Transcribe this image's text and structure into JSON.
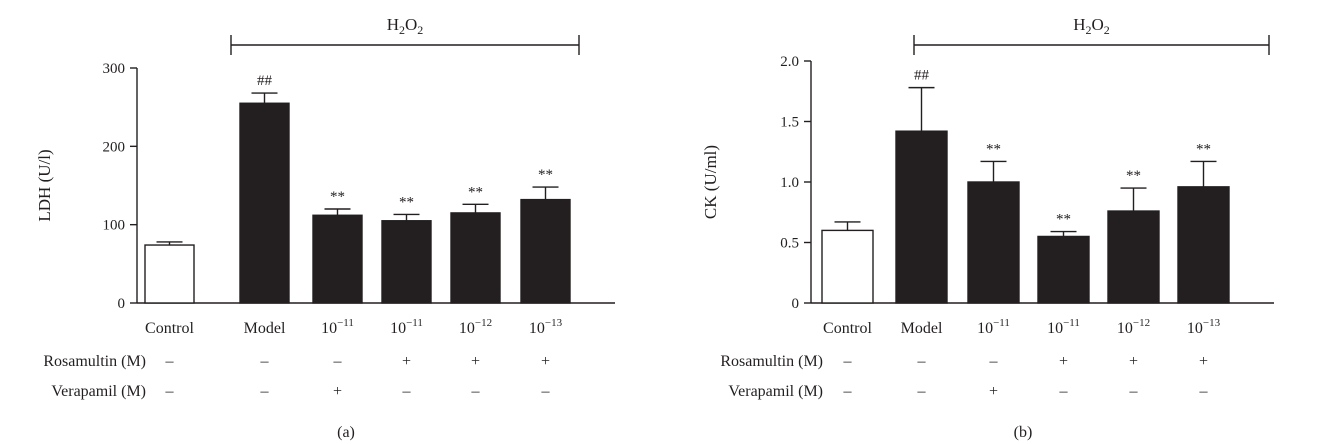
{
  "chart_data": [
    {
      "type": "bar",
      "panel_label": "(a)",
      "ylabel": "LDH (U/l)",
      "ylim": [
        0,
        300
      ],
      "yticks": [
        "0",
        "100",
        "200",
        "300"
      ],
      "bracket_label": "H2O2",
      "categories": [
        {
          "base": "Control",
          "exp": ""
        },
        {
          "base": "Model",
          "exp": ""
        },
        {
          "base": "10",
          "exp": "−11"
        },
        {
          "base": "10",
          "exp": "−11"
        },
        {
          "base": "10",
          "exp": "−12"
        },
        {
          "base": "10",
          "exp": "−13"
        }
      ],
      "values": [
        74,
        255,
        112,
        105,
        115,
        132
      ],
      "errors": [
        4,
        13,
        8,
        8,
        11,
        16
      ],
      "bar_colors": [
        "#ffffff",
        "#231f20",
        "#231f20",
        "#231f20",
        "#231f20",
        "#231f20"
      ],
      "significance": [
        "",
        "##",
        "**",
        "**",
        "**",
        "**"
      ],
      "rows": [
        {
          "label": "Rosamultin (M)",
          "values": [
            "–",
            "–",
            "–",
            "+",
            "+",
            "+"
          ]
        },
        {
          "label": "Verapamil (M)",
          "values": [
            "–",
            "–",
            "+",
            "–",
            "–",
            "–"
          ]
        }
      ]
    },
    {
      "type": "bar",
      "panel_label": "(b)",
      "ylabel": "CK (U/ml)",
      "ylim": [
        0,
        2.0
      ],
      "yticks": [
        "0",
        "0.5",
        "1.0",
        "1.5",
        "2.0"
      ],
      "bracket_label": "H2O2",
      "categories": [
        {
          "base": "Control",
          "exp": ""
        },
        {
          "base": "Model",
          "exp": ""
        },
        {
          "base": "10",
          "exp": "−11"
        },
        {
          "base": "10",
          "exp": "−11"
        },
        {
          "base": "10",
          "exp": "−12"
        },
        {
          "base": "10",
          "exp": "−13"
        }
      ],
      "values": [
        0.6,
        1.42,
        1.0,
        0.55,
        0.76,
        0.96
      ],
      "errors": [
        0.07,
        0.36,
        0.17,
        0.04,
        0.19,
        0.21
      ],
      "bar_colors": [
        "#ffffff",
        "#231f20",
        "#231f20",
        "#231f20",
        "#231f20",
        "#231f20"
      ],
      "significance": [
        "",
        "##",
        "**",
        "**",
        "**",
        "**"
      ],
      "rows": [
        {
          "label": "Rosamultin (M)",
          "values": [
            "–",
            "–",
            "–",
            "+",
            "+",
            "+"
          ]
        },
        {
          "label": "Verapamil (M)",
          "values": [
            "–",
            "–",
            "+",
            "–",
            "–",
            "–"
          ]
        }
      ]
    }
  ]
}
